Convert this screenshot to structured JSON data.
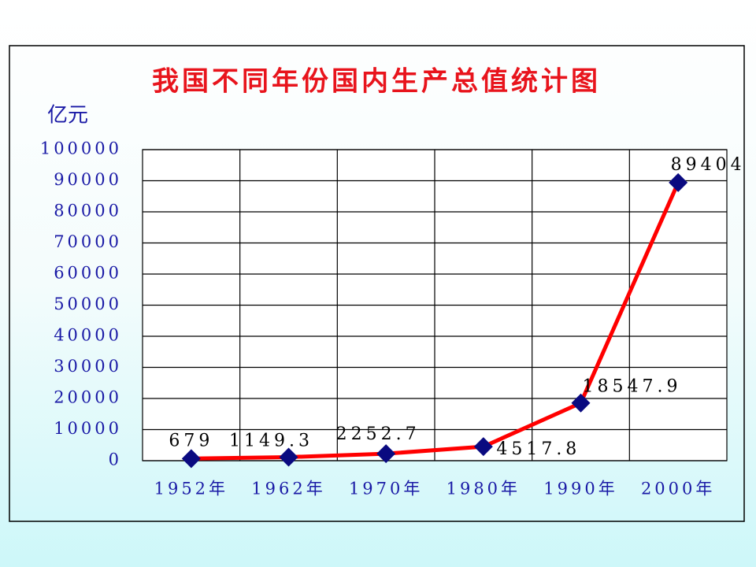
{
  "chart_data": {
    "type": "line",
    "title": "我国不同年份国内生产总值统计图",
    "y_label": "亿元",
    "categories": [
      "1952年",
      "1962年",
      "1970年",
      "1980年",
      "1990年",
      "2000年"
    ],
    "series": [
      {
        "name": "国内生产总值",
        "color": "#ff0000",
        "marker_color": "#0a0a80",
        "values": [
          679,
          1149.3,
          2252.7,
          4517.8,
          18547.9,
          89404
        ]
      }
    ],
    "ylim": [
      0,
      100000
    ],
    "yticks": [
      0,
      10000,
      20000,
      30000,
      40000,
      50000,
      60000,
      70000,
      80000,
      90000,
      100000
    ],
    "grid": true
  }
}
